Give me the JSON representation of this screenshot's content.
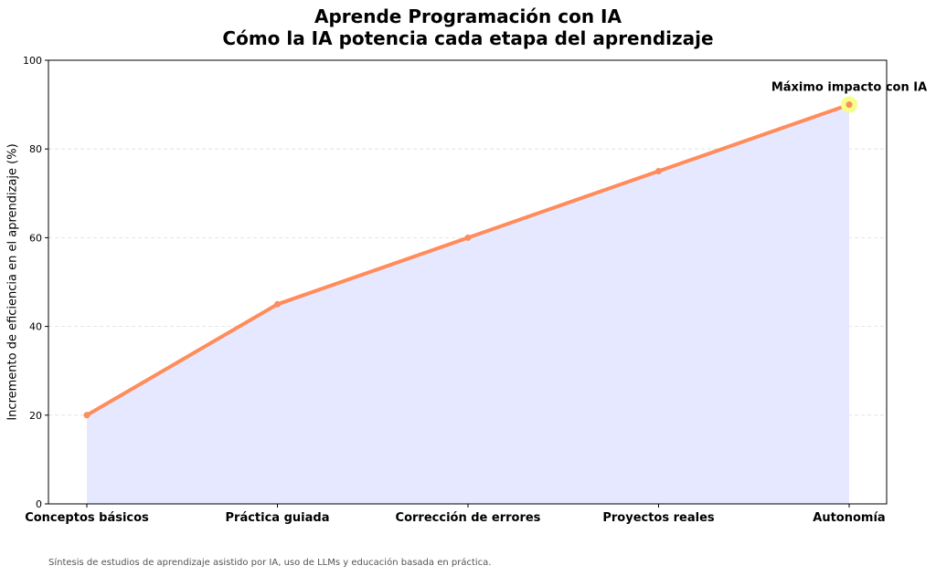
{
  "title": "Aprende Programación con IA",
  "subtitle": "Cómo la IA potencia cada etapa del aprendizaje",
  "footnote": "Síntesis de estudios de aprendizaje asistido por IA, uso de LLMs y educación basada en práctica.",
  "colors": {
    "line": "#ff8c5a",
    "area": "#e6e8ff",
    "highlight": "#f4ff8a",
    "grid": "#dddddd"
  },
  "chart_data": {
    "type": "area",
    "categories": [
      "Conceptos básicos",
      "Práctica guiada",
      "Corrección de errores",
      "Proyectos reales",
      "Autonomía"
    ],
    "values": [
      20,
      45,
      60,
      75,
      90
    ],
    "ylabel": "Incremento de eficiencia en el aprendizaje (%)",
    "xlabel": "",
    "ylim": [
      0,
      100
    ],
    "yticks": [
      0,
      20,
      40,
      60,
      80,
      100
    ],
    "grid": "horizontal dashed",
    "annotation": {
      "text": "Máximo impacto con IA",
      "category_index": 4
    }
  }
}
